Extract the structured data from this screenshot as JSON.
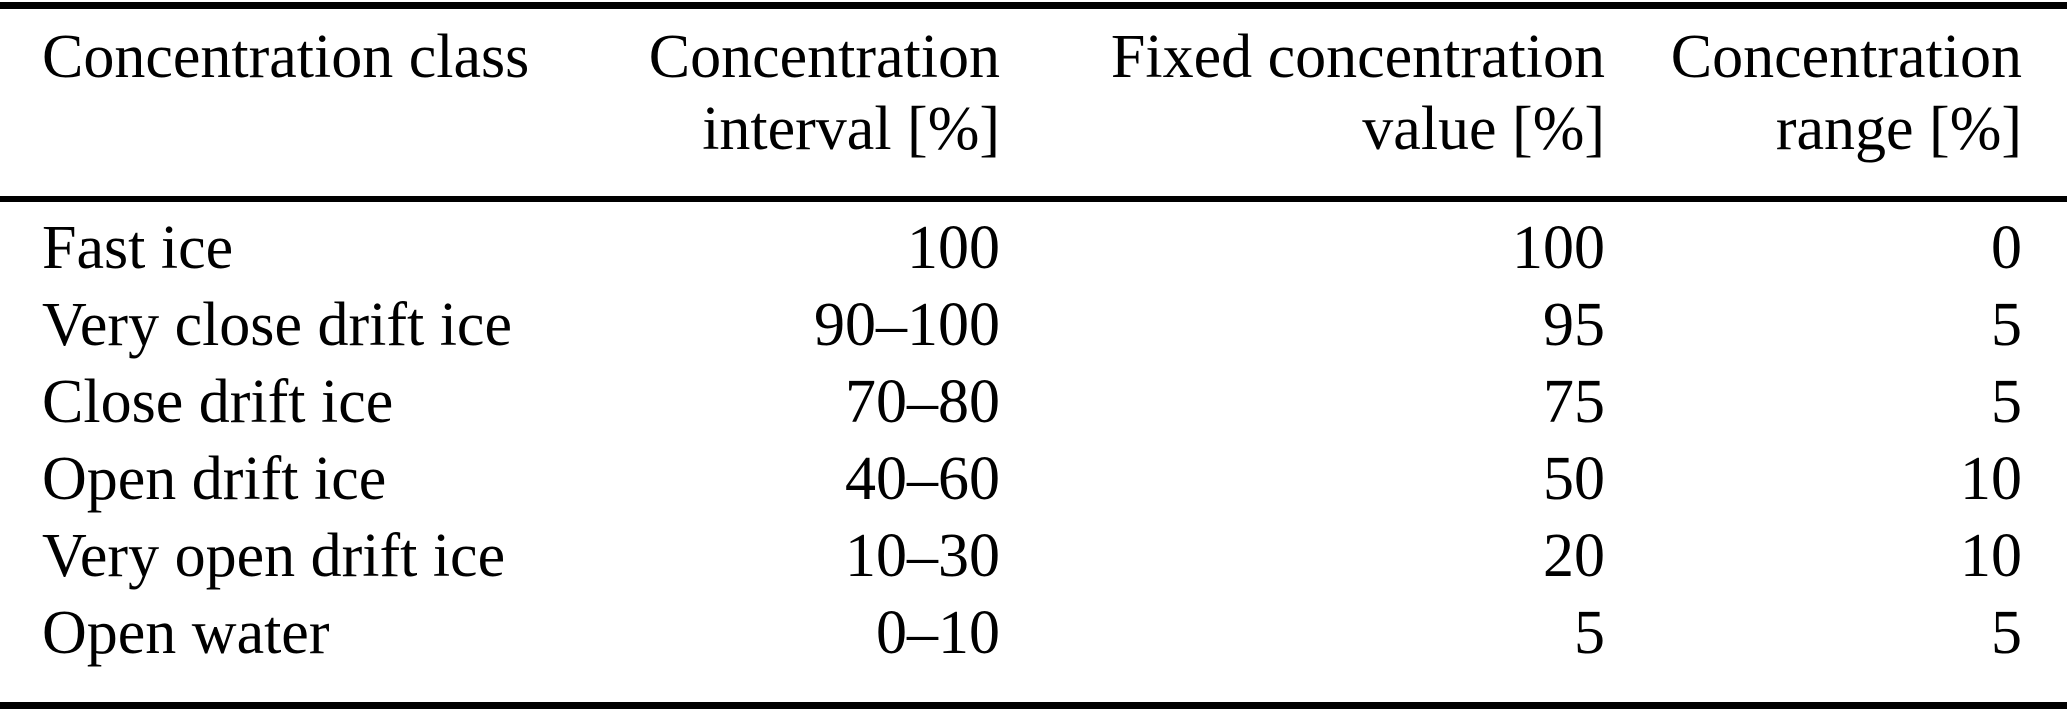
{
  "colors": {
    "background": "#ffffff",
    "text": "#000000",
    "rule": "#000000"
  },
  "table": {
    "columns": [
      {
        "line1": "Concentration class",
        "line2": ""
      },
      {
        "line1": "Concentration",
        "line2": "interval [%]"
      },
      {
        "line1": "Fixed concentration",
        "line2": "value [%]"
      },
      {
        "line1": "Concentration",
        "line2": "range [%]"
      }
    ],
    "rows": [
      [
        "Fast ice",
        "100",
        "100",
        "0"
      ],
      [
        "Very close drift ice",
        "90–100",
        "95",
        "5"
      ],
      [
        "Close drift ice",
        "70–80",
        "75",
        "5"
      ],
      [
        "Open drift ice",
        "40–60",
        "50",
        "10"
      ],
      [
        "Very open drift ice",
        "10–30",
        "20",
        "10"
      ],
      [
        "Open water",
        "0–10",
        "5",
        "5"
      ]
    ]
  }
}
